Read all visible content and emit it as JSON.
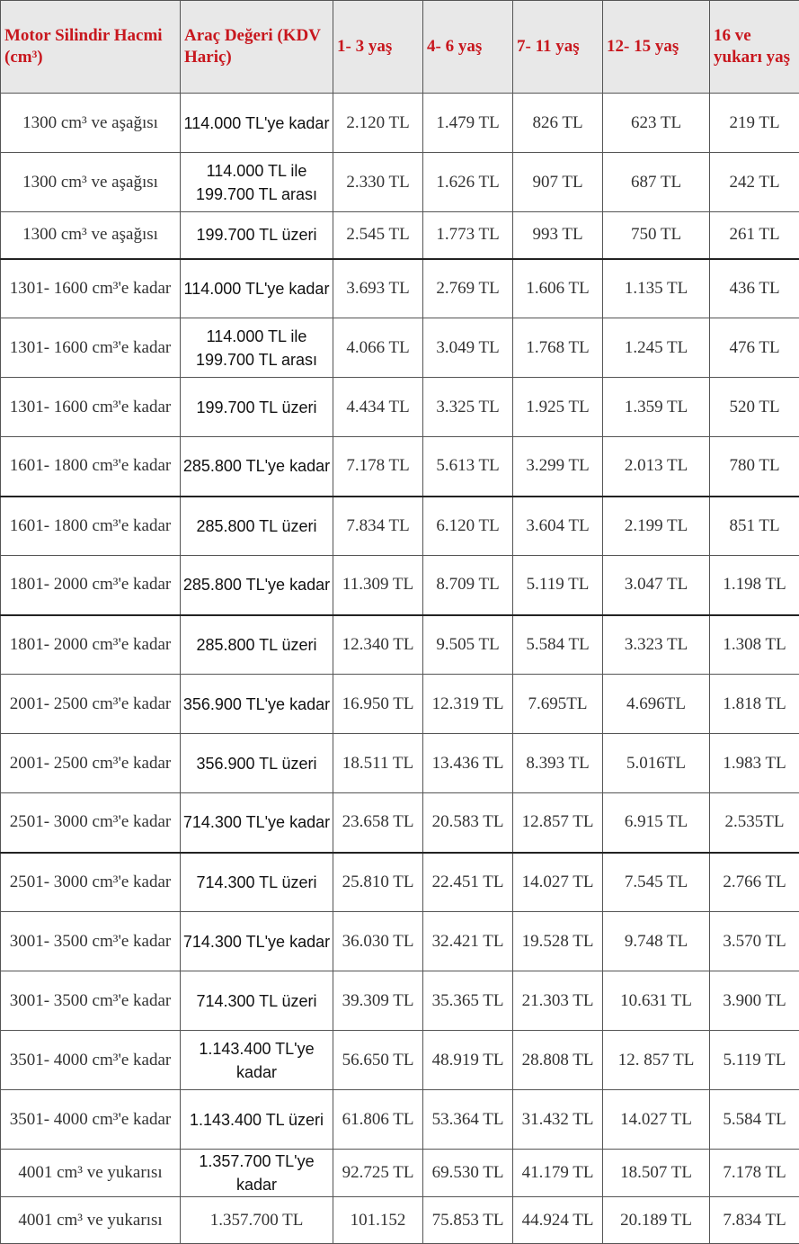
{
  "headers": {
    "engine": "Motor Silindir Hacmi (cm³)",
    "value": "Araç Değeri (KDV Hariç)",
    "age_1_3": "1- 3 yaş",
    "age_4_6": "4- 6 yaş",
    "age_7_11": "7- 11 yaş",
    "age_12_15": "12- 15 yaş",
    "age_16_plus": "16 ve yukarı yaş"
  },
  "rows": [
    {
      "engine": "1300 cm³ ve aşağısı",
      "value": "114.000 TL'ye kadar",
      "a": "2.120 TL",
      "b": "1.479 TL",
      "c": "826 TL",
      "d": "623 TL",
      "e": "219 TL"
    },
    {
      "engine": "1300 cm³ ve aşağısı",
      "value": "114.000 TL ile 199.700 TL arası",
      "a": "2.330 TL",
      "b": "1.626 TL",
      "c": "907 TL",
      "d": "687 TL",
      "e": "242 TL"
    },
    {
      "engine": "1300 cm³ ve aşağısı",
      "value": "199.700 TL üzeri",
      "a": "2.545 TL",
      "b": "1.773 TL",
      "c": "993 TL",
      "d": "750 TL",
      "e": "261 TL"
    },
    {
      "engine": "1301- 1600 cm³'e kadar",
      "value": "114.000 TL'ye kadar",
      "a": "3.693 TL",
      "b": "2.769 TL",
      "c": "1.606 TL",
      "d": "1.135 TL",
      "e": "436 TL"
    },
    {
      "engine": "1301- 1600 cm³'e kadar",
      "value": "114.000 TL ile 199.700 TL arası",
      "a": "4.066 TL",
      "b": "3.049 TL",
      "c": "1.768 TL",
      "d": "1.245 TL",
      "e": "476 TL"
    },
    {
      "engine": "1301- 1600 cm³'e kadar",
      "value": "199.700 TL üzeri",
      "a": "4.434 TL",
      "b": "3.325 TL",
      "c": "1.925 TL",
      "d": "1.359 TL",
      "e": "520 TL"
    },
    {
      "engine": "1601- 1800 cm³'e kadar",
      "value": "285.800 TL'ye kadar",
      "a": "7.178 TL",
      "b": "5.613 TL",
      "c": "3.299 TL",
      "d": "2.013 TL",
      "e": "780 TL"
    },
    {
      "engine": "1601- 1800 cm³'e kadar",
      "value": "285.800 TL üzeri",
      "a": "7.834 TL",
      "b": "6.120 TL",
      "c": "3.604 TL",
      "d": "2.199 TL",
      "e": "851 TL"
    },
    {
      "engine": "1801- 2000 cm³'e kadar",
      "value": "285.800 TL'ye kadar",
      "a": "11.309 TL",
      "b": "8.709 TL",
      "c": "5.119 TL",
      "d": "3.047 TL",
      "e": "1.198 TL"
    },
    {
      "engine": "1801- 2000 cm³'e kadar",
      "value": "285.800 TL üzeri",
      "a": "12.340 TL",
      "b": "9.505 TL",
      "c": "5.584 TL",
      "d": "3.323 TL",
      "e": "1.308 TL"
    },
    {
      "engine": "2001- 2500 cm³'e kadar",
      "value": "356.900 TL'ye kadar",
      "a": "16.950 TL",
      "b": "12.319 TL",
      "c": "7.695TL",
      "d": "4.696TL",
      "e": "1.818 TL"
    },
    {
      "engine": "2001- 2500 cm³'e kadar",
      "value": "356.900 TL üzeri",
      "a": "18.511 TL",
      "b": "13.436 TL",
      "c": "8.393 TL",
      "d": "5.016TL",
      "e": "1.983 TL"
    },
    {
      "engine": "2501- 3000 cm³'e kadar",
      "value": "714.300 TL'ye kadar",
      "a": "23.658 TL",
      "b": "20.583 TL",
      "c": "12.857 TL",
      "d": "6.915 TL",
      "e": "2.535TL"
    },
    {
      "engine": "2501- 3000 cm³'e kadar",
      "value": "714.300 TL üzeri",
      "a": "25.810 TL",
      "b": "22.451 TL",
      "c": "14.027 TL",
      "d": "7.545 TL",
      "e": "2.766 TL"
    },
    {
      "engine": "3001- 3500 cm³'e kadar",
      "value": "714.300 TL'ye kadar",
      "a": "36.030 TL",
      "b": "32.421 TL",
      "c": "19.528 TL",
      "d": "9.748 TL",
      "e": "3.570 TL"
    },
    {
      "engine": "3001- 3500 cm³'e kadar",
      "value": "714.300 TL üzeri",
      "a": "39.309 TL",
      "b": "35.365 TL",
      "c": "21.303 TL",
      "d": "10.631 TL",
      "e": "3.900 TL"
    },
    {
      "engine": "3501- 4000 cm³'e kadar",
      "value": "1.143.400 TL'ye kadar",
      "a": "56.650 TL",
      "b": "48.919 TL",
      "c": "28.808 TL",
      "d": "12. 857 TL",
      "e": "5.119 TL"
    },
    {
      "engine": "3501- 4000 cm³'e kadar",
      "value": "1.143.400 TL üzeri",
      "a": "61.806 TL",
      "b": "53.364 TL",
      "c": "31.432 TL",
      "d": "14.027 TL",
      "e": "5.584 TL"
    },
    {
      "engine": "4001 cm³ ve yukarısı",
      "value": "1.357.700 TL'ye kadar",
      "a": "92.725 TL",
      "b": "69.530 TL",
      "c": "41.179 TL",
      "d": "18.507 TL",
      "e": "7.178 TL"
    },
    {
      "engine": "4001 cm³ ve yukarısı",
      "value": "1.357.700 TL",
      "a": "101.152",
      "b": "75.853 TL",
      "c": "44.924 TL",
      "d": "20.189 TL",
      "e": "7.834 TL"
    }
  ]
}
